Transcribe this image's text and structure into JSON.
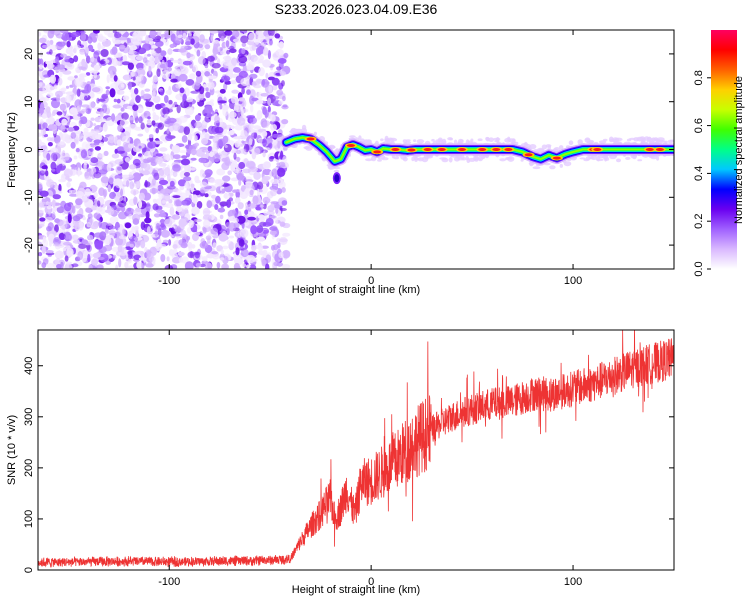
{
  "title": "S233.2026.023.04.09.E36",
  "chart_data": [
    {
      "type": "heatmap",
      "title": "S233.2026.023.04.09.E36",
      "xlabel": "Height of straight line (km)",
      "ylabel": "Frequency (Hz)",
      "xlim": [
        -165,
        150
      ],
      "ylim": [
        -25,
        25
      ],
      "xticks": [
        -100,
        0,
        100
      ],
      "xtick_labels": [
        "-100",
        "0",
        "100"
      ],
      "yticks": [
        -20,
        -10,
        0,
        10,
        20
      ],
      "ytick_labels": [
        "-20",
        "-10",
        "0",
        "10",
        "20"
      ],
      "noise_region_x": [
        -165,
        -42
      ],
      "signal_track": {
        "x": [
          -42,
          -38,
          -34,
          -30,
          -26,
          -22,
          -18,
          -15,
          -12,
          -9,
          -6,
          -3,
          0,
          3,
          6,
          10,
          14,
          18,
          22,
          30,
          40,
          60,
          70,
          75,
          80,
          84,
          88,
          92,
          96,
          100,
          105,
          110,
          120,
          130,
          140,
          150
        ],
        "frequency_hz": [
          1.5,
          2.2,
          2.5,
          2.2,
          1.0,
          -0.5,
          -2.5,
          -2.0,
          0.5,
          1.0,
          0.5,
          -0.2,
          0.0,
          -0.5,
          0.2,
          0.0,
          0.0,
          -0.2,
          0.0,
          0.0,
          0.0,
          0.0,
          0.0,
          -0.5,
          -1.5,
          -2.0,
          -1.2,
          -1.8,
          -1.0,
          -0.5,
          0.0,
          0.0,
          0.0,
          0.0,
          0.0,
          0.0
        ]
      },
      "colorbar": {
        "label": "Normalized spectral amplitude",
        "range": [
          0,
          1
        ],
        "ticks": [
          0.0,
          0.2,
          0.4,
          0.6,
          0.8
        ],
        "tick_labels": [
          "0.0",
          "0.2",
          "0.4",
          "0.6",
          "0.8"
        ],
        "colors": [
          "#ffffff",
          "#d9b8ff",
          "#a060ff",
          "#6a00f0",
          "#0000ff",
          "#00c8ff",
          "#00ff88",
          "#40ff00",
          "#c8ff00",
          "#ffd000",
          "#ff6000",
          "#ff0000",
          "#ff0060"
        ]
      }
    },
    {
      "type": "line",
      "xlabel": "Height of straight line (km)",
      "ylabel": "SNR (10 * v/v)",
      "xlim": [
        -165,
        150
      ],
      "ylim": [
        0,
        470
      ],
      "xticks": [
        -100,
        0,
        100
      ],
      "xtick_labels": [
        "-100",
        "0",
        "100"
      ],
      "yticks": [
        0,
        100,
        200,
        300,
        400
      ],
      "ytick_labels": [
        "0",
        "100",
        "200",
        "300",
        "400"
      ],
      "series": [
        {
          "name": "SNR",
          "color": "#ee3333",
          "x": [
            -165,
            -140,
            -120,
            -100,
            -80,
            -60,
            -45,
            -40,
            -35,
            -30,
            -25,
            -22,
            -20,
            -18,
            -15,
            -12,
            -10,
            -8,
            -5,
            0,
            5,
            10,
            20,
            30,
            40,
            50,
            60,
            70,
            80,
            90,
            100,
            110,
            120,
            130,
            140,
            150
          ],
          "y": [
            15,
            16,
            17,
            16,
            17,
            18,
            20,
            22,
            55,
            85,
            110,
            130,
            140,
            100,
            120,
            160,
            130,
            110,
            170,
            175,
            190,
            205,
            245,
            275,
            300,
            315,
            325,
            330,
            345,
            345,
            355,
            365,
            380,
            395,
            405,
            415
          ]
        }
      ]
    }
  ]
}
